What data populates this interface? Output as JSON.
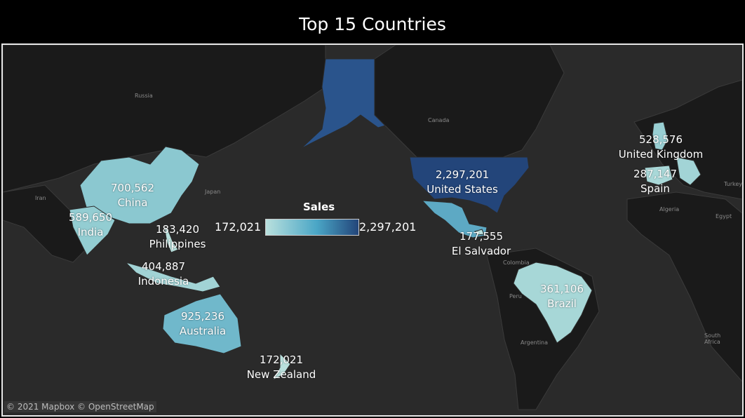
{
  "title": "Top 15 Countries",
  "legend": {
    "title": "Sales",
    "min_label": "172,021",
    "max_label": "2,297,201",
    "color_min": "#b9e0dd",
    "color_mid": "#4aa6c6",
    "color_max": "#23457a"
  },
  "countries": [
    {
      "name": "United States",
      "value": "2,297,201"
    },
    {
      "name": "Australia",
      "value": "925,236"
    },
    {
      "name": "China",
      "value": "700,562"
    },
    {
      "name": "India",
      "value": "589,650"
    },
    {
      "name": "United Kingdom",
      "value": "528,576"
    },
    {
      "name": "Indonesia",
      "value": "404,887"
    },
    {
      "name": "Brazil",
      "value": "361,106"
    },
    {
      "name": "Spain",
      "value": "287,147"
    },
    {
      "name": "Philippines",
      "value": "183,420"
    },
    {
      "name": "El Salvador",
      "value": "177,555"
    },
    {
      "name": "New Zealand",
      "value": "172,021"
    }
  ],
  "basemap_labels": [
    "Russia",
    "Canada",
    "Iran",
    "Japan",
    "Algeria",
    "Egypt",
    "Turkey",
    "Colombia",
    "Peru",
    "Argentina",
    "South Africa"
  ],
  "attribution": "© 2021 Mapbox © OpenStreetMap"
}
